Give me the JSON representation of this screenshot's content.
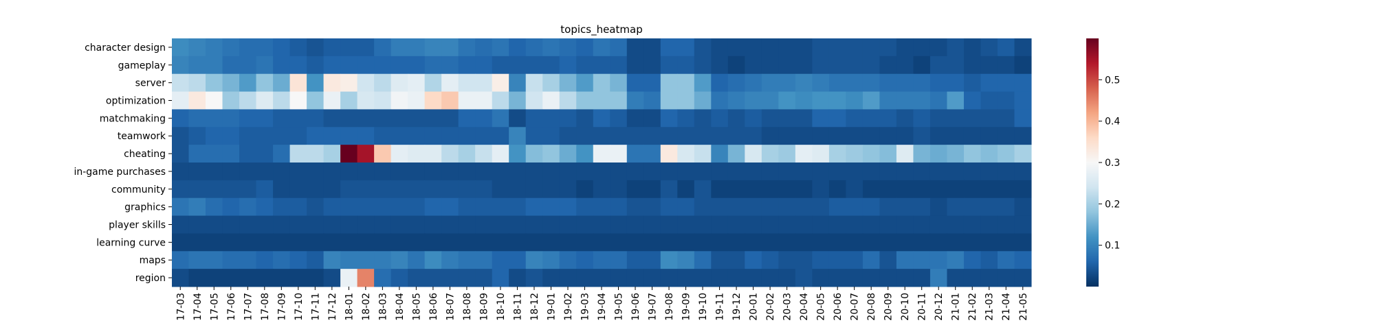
{
  "chart_data": {
    "type": "heatmap",
    "title": "topics_heatmap",
    "xlabel": "",
    "ylabel": "",
    "colormap": "RdBu_r",
    "vmin": 0.0,
    "vmax": 0.6,
    "colorbar_ticks": [
      "0.1",
      "0.2",
      "0.3",
      "0.4",
      "0.5"
    ],
    "x_labels": [
      "17-03",
      "17-04",
      "17-05",
      "17-06",
      "17-07",
      "17-08",
      "17-09",
      "17-10",
      "17-11",
      "17-12",
      "18-01",
      "18-02",
      "18-03",
      "18-04",
      "18-05",
      "18-06",
      "18-07",
      "18-08",
      "18-09",
      "18-10",
      "18-11",
      "18-12",
      "19-01",
      "19-02",
      "19-03",
      "19-04",
      "19-05",
      "19-06",
      "19-07",
      "19-08",
      "19-09",
      "19-10",
      "19-11",
      "19-12",
      "20-01",
      "20-02",
      "20-03",
      "20-04",
      "20-05",
      "20-06",
      "20-07",
      "20-08",
      "20-09",
      "20-10",
      "20-11",
      "20-12",
      "21-01",
      "21-02",
      "21-03",
      "21-04",
      "21-05"
    ],
    "y_labels": [
      "character design",
      "gameplay",
      "server",
      "optimization",
      "matchmaking",
      "teamwork",
      "cheating",
      "in-game purchases",
      "community",
      "graphics",
      "player skills",
      "learning curve",
      "maps",
      "region"
    ],
    "values": [
      [
        0.11,
        0.1,
        0.09,
        0.08,
        0.07,
        0.07,
        0.06,
        0.05,
        0.04,
        0.05,
        0.05,
        0.05,
        0.07,
        0.09,
        0.09,
        0.1,
        0.1,
        0.08,
        0.07,
        0.08,
        0.06,
        0.07,
        0.08,
        0.07,
        0.06,
        0.08,
        0.07,
        0.03,
        0.03,
        0.06,
        0.06,
        0.04,
        0.03,
        0.03,
        0.03,
        0.03,
        0.03,
        0.03,
        0.04,
        0.04,
        0.04,
        0.04,
        0.04,
        0.03,
        0.03,
        0.03,
        0.04,
        0.03,
        0.04,
        0.05,
        0.03
      ],
      [
        0.1,
        0.09,
        0.09,
        0.07,
        0.07,
        0.08,
        0.06,
        0.06,
        0.05,
        0.06,
        0.06,
        0.06,
        0.06,
        0.06,
        0.06,
        0.07,
        0.07,
        0.06,
        0.06,
        0.05,
        0.05,
        0.05,
        0.05,
        0.06,
        0.05,
        0.05,
        0.05,
        0.03,
        0.03,
        0.05,
        0.05,
        0.04,
        0.03,
        0.02,
        0.03,
        0.03,
        0.03,
        0.03,
        0.04,
        0.04,
        0.04,
        0.04,
        0.03,
        0.03,
        0.02,
        0.04,
        0.04,
        0.03,
        0.03,
        0.03,
        0.02
      ],
      [
        0.23,
        0.22,
        0.18,
        0.16,
        0.13,
        0.18,
        0.15,
        0.34,
        0.12,
        0.33,
        0.32,
        0.24,
        0.22,
        0.26,
        0.27,
        0.21,
        0.27,
        0.24,
        0.24,
        0.32,
        0.1,
        0.23,
        0.2,
        0.16,
        0.13,
        0.18,
        0.16,
        0.06,
        0.06,
        0.18,
        0.18,
        0.13,
        0.06,
        0.07,
        0.08,
        0.09,
        0.09,
        0.1,
        0.09,
        0.08,
        0.08,
        0.08,
        0.07,
        0.07,
        0.07,
        0.06,
        0.06,
        0.05,
        0.06,
        0.06,
        0.06
      ],
      [
        0.27,
        0.33,
        0.3,
        0.19,
        0.22,
        0.26,
        0.22,
        0.3,
        0.18,
        0.28,
        0.2,
        0.25,
        0.24,
        0.29,
        0.28,
        0.36,
        0.38,
        0.28,
        0.28,
        0.22,
        0.16,
        0.24,
        0.28,
        0.22,
        0.18,
        0.18,
        0.18,
        0.09,
        0.08,
        0.18,
        0.18,
        0.15,
        0.08,
        0.09,
        0.1,
        0.1,
        0.12,
        0.11,
        0.12,
        0.12,
        0.11,
        0.13,
        0.09,
        0.09,
        0.09,
        0.08,
        0.13,
        0.06,
        0.05,
        0.05,
        0.06
      ],
      [
        0.06,
        0.07,
        0.07,
        0.07,
        0.06,
        0.06,
        0.05,
        0.05,
        0.05,
        0.04,
        0.04,
        0.04,
        0.04,
        0.04,
        0.04,
        0.04,
        0.04,
        0.06,
        0.06,
        0.08,
        0.03,
        0.05,
        0.05,
        0.05,
        0.04,
        0.06,
        0.05,
        0.03,
        0.03,
        0.06,
        0.05,
        0.04,
        0.05,
        0.04,
        0.05,
        0.04,
        0.04,
        0.04,
        0.06,
        0.06,
        0.05,
        0.05,
        0.05,
        0.04,
        0.05,
        0.04,
        0.04,
        0.04,
        0.04,
        0.04,
        0.06
      ],
      [
        0.04,
        0.05,
        0.06,
        0.06,
        0.05,
        0.05,
        0.05,
        0.05,
        0.06,
        0.06,
        0.06,
        0.06,
        0.05,
        0.05,
        0.05,
        0.05,
        0.05,
        0.05,
        0.05,
        0.05,
        0.1,
        0.05,
        0.05,
        0.04,
        0.04,
        0.04,
        0.04,
        0.04,
        0.04,
        0.04,
        0.04,
        0.04,
        0.04,
        0.04,
        0.04,
        0.03,
        0.03,
        0.03,
        0.03,
        0.03,
        0.03,
        0.03,
        0.03,
        0.03,
        0.04,
        0.03,
        0.03,
        0.03,
        0.03,
        0.03,
        0.03
      ],
      [
        0.04,
        0.07,
        0.07,
        0.07,
        0.05,
        0.05,
        0.07,
        0.22,
        0.22,
        0.2,
        0.6,
        0.55,
        0.38,
        0.27,
        0.26,
        0.26,
        0.22,
        0.2,
        0.23,
        0.27,
        0.12,
        0.17,
        0.18,
        0.15,
        0.12,
        0.28,
        0.28,
        0.08,
        0.08,
        0.33,
        0.25,
        0.23,
        0.1,
        0.16,
        0.25,
        0.2,
        0.19,
        0.27,
        0.26,
        0.2,
        0.19,
        0.18,
        0.17,
        0.26,
        0.16,
        0.15,
        0.16,
        0.18,
        0.17,
        0.18,
        0.2
      ],
      [
        0.03,
        0.03,
        0.03,
        0.03,
        0.03,
        0.03,
        0.03,
        0.03,
        0.03,
        0.03,
        0.03,
        0.03,
        0.03,
        0.03,
        0.03,
        0.03,
        0.03,
        0.03,
        0.03,
        0.03,
        0.03,
        0.03,
        0.03,
        0.03,
        0.03,
        0.03,
        0.03,
        0.03,
        0.03,
        0.03,
        0.03,
        0.03,
        0.03,
        0.03,
        0.03,
        0.03,
        0.03,
        0.03,
        0.03,
        0.03,
        0.03,
        0.03,
        0.03,
        0.03,
        0.03,
        0.03,
        0.03,
        0.03,
        0.03,
        0.03,
        0.03
      ],
      [
        0.04,
        0.04,
        0.04,
        0.04,
        0.04,
        0.05,
        0.03,
        0.03,
        0.03,
        0.03,
        0.04,
        0.04,
        0.04,
        0.04,
        0.04,
        0.04,
        0.04,
        0.04,
        0.04,
        0.03,
        0.03,
        0.03,
        0.03,
        0.03,
        0.02,
        0.03,
        0.03,
        0.02,
        0.02,
        0.04,
        0.02,
        0.04,
        0.02,
        0.02,
        0.02,
        0.02,
        0.02,
        0.02,
        0.03,
        0.02,
        0.03,
        0.02,
        0.02,
        0.02,
        0.02,
        0.02,
        0.02,
        0.02,
        0.02,
        0.02,
        0.02
      ],
      [
        0.08,
        0.09,
        0.07,
        0.06,
        0.07,
        0.06,
        0.05,
        0.05,
        0.04,
        0.05,
        0.05,
        0.05,
        0.05,
        0.05,
        0.05,
        0.06,
        0.06,
        0.05,
        0.05,
        0.05,
        0.05,
        0.06,
        0.06,
        0.06,
        0.05,
        0.05,
        0.05,
        0.04,
        0.04,
        0.05,
        0.05,
        0.04,
        0.04,
        0.04,
        0.04,
        0.04,
        0.04,
        0.04,
        0.04,
        0.05,
        0.05,
        0.05,
        0.04,
        0.04,
        0.04,
        0.03,
        0.04,
        0.04,
        0.04,
        0.04,
        0.03
      ],
      [
        0.03,
        0.03,
        0.03,
        0.03,
        0.03,
        0.03,
        0.03,
        0.03,
        0.03,
        0.03,
        0.03,
        0.03,
        0.03,
        0.03,
        0.03,
        0.03,
        0.03,
        0.03,
        0.03,
        0.03,
        0.03,
        0.03,
        0.03,
        0.03,
        0.03,
        0.03,
        0.03,
        0.03,
        0.03,
        0.03,
        0.03,
        0.03,
        0.03,
        0.03,
        0.03,
        0.03,
        0.03,
        0.03,
        0.03,
        0.03,
        0.03,
        0.03,
        0.03,
        0.03,
        0.03,
        0.03,
        0.03,
        0.03,
        0.03,
        0.03,
        0.03
      ],
      [
        0.02,
        0.02,
        0.02,
        0.02,
        0.02,
        0.02,
        0.02,
        0.02,
        0.02,
        0.02,
        0.02,
        0.02,
        0.02,
        0.02,
        0.02,
        0.02,
        0.02,
        0.02,
        0.02,
        0.02,
        0.02,
        0.02,
        0.02,
        0.02,
        0.02,
        0.02,
        0.02,
        0.02,
        0.02,
        0.02,
        0.02,
        0.02,
        0.02,
        0.02,
        0.02,
        0.02,
        0.02,
        0.02,
        0.02,
        0.02,
        0.02,
        0.02,
        0.02,
        0.02,
        0.02,
        0.02,
        0.02,
        0.02,
        0.02,
        0.02,
        0.02
      ],
      [
        0.07,
        0.08,
        0.08,
        0.07,
        0.07,
        0.06,
        0.07,
        0.06,
        0.05,
        0.1,
        0.09,
        0.09,
        0.09,
        0.1,
        0.08,
        0.11,
        0.09,
        0.08,
        0.08,
        0.06,
        0.06,
        0.1,
        0.09,
        0.07,
        0.06,
        0.07,
        0.07,
        0.05,
        0.05,
        0.11,
        0.1,
        0.07,
        0.04,
        0.04,
        0.06,
        0.05,
        0.04,
        0.04,
        0.05,
        0.05,
        0.05,
        0.07,
        0.04,
        0.08,
        0.08,
        0.08,
        0.09,
        0.06,
        0.05,
        0.07,
        0.06
      ],
      [
        0.03,
        0.02,
        0.02,
        0.02,
        0.02,
        0.02,
        0.02,
        0.02,
        0.02,
        0.03,
        0.28,
        0.45,
        0.07,
        0.05,
        0.04,
        0.04,
        0.04,
        0.04,
        0.04,
        0.06,
        0.03,
        0.04,
        0.03,
        0.03,
        0.03,
        0.03,
        0.03,
        0.03,
        0.03,
        0.03,
        0.03,
        0.03,
        0.03,
        0.03,
        0.03,
        0.03,
        0.03,
        0.04,
        0.03,
        0.03,
        0.03,
        0.03,
        0.03,
        0.03,
        0.03,
        0.09,
        0.03,
        0.03,
        0.03,
        0.03,
        0.03
      ]
    ]
  }
}
